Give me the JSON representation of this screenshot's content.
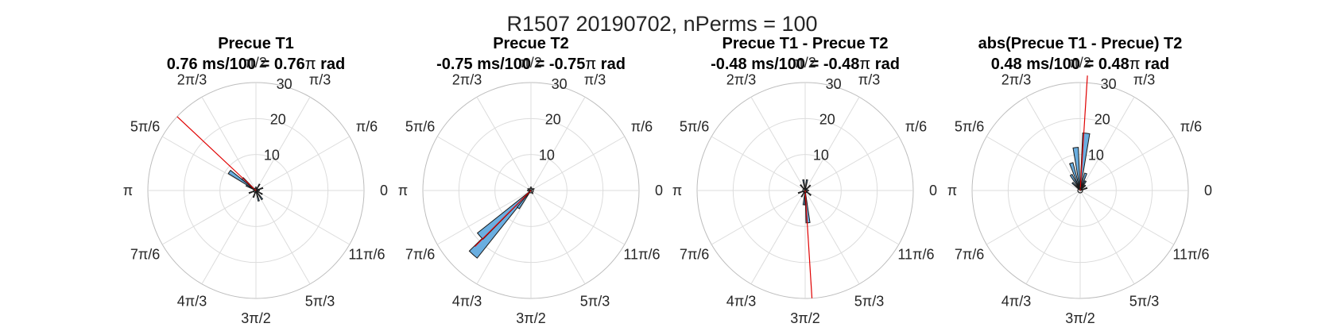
{
  "figure": {
    "suptitle": "R1507 20190702, nPerms = 100"
  },
  "chart_data": [
    {
      "type": "polar-histogram",
      "title_line1": "Precue T1",
      "title_prefix": "0.76 ms/100 = 0.76",
      "title_suffix": " rad",
      "rlim": [
        0,
        30
      ],
      "rticks": [
        "10",
        "20",
        "30"
      ],
      "theta_ticks": [
        "0",
        "π/6",
        "π/3",
        "π/2",
        "2π/3",
        "5π/6",
        "π",
        "7π/6",
        "4π/3",
        "3π/2",
        "5π/3",
        "11π/6"
      ],
      "mean_angle_pi": 0.76,
      "mean_length": 30,
      "bins": [
        {
          "angle_deg": 145,
          "count": 9
        },
        {
          "angle_deg": 138,
          "count": 5
        },
        {
          "angle_deg": 152,
          "count": 3
        },
        {
          "angle_deg": 20,
          "count": 2
        },
        {
          "angle_deg": 60,
          "count": 2
        },
        {
          "angle_deg": 200,
          "count": 2
        },
        {
          "angle_deg": 250,
          "count": 2
        },
        {
          "angle_deg": 285,
          "count": 3
        },
        {
          "angle_deg": 305,
          "count": 3
        },
        {
          "angle_deg": 330,
          "count": 2
        },
        {
          "angle_deg": 0,
          "count": 1
        },
        {
          "angle_deg": 90,
          "count": 1
        }
      ]
    },
    {
      "type": "polar-histogram",
      "title_line1": "Precue T2",
      "title_prefix": "-0.75 ms/100 = -0.75",
      "title_suffix": " rad",
      "rlim": [
        0,
        30
      ],
      "rticks": [
        "10",
        "20",
        "30"
      ],
      "theta_ticks": [
        "0",
        "π/6",
        "π/3",
        "π/2",
        "2π/3",
        "5π/6",
        "π",
        "7π/6",
        "4π/3",
        "3π/2",
        "5π/3",
        "11π/6"
      ],
      "mean_angle_pi": -0.75,
      "mean_length": 22,
      "bins": [
        {
          "angle_deg": 228,
          "count": 24
        },
        {
          "angle_deg": 222,
          "count": 19
        },
        {
          "angle_deg": 234,
          "count": 6
        },
        {
          "angle_deg": 30,
          "count": 1
        },
        {
          "angle_deg": 90,
          "count": 1
        },
        {
          "angle_deg": 150,
          "count": 1
        },
        {
          "angle_deg": 180,
          "count": 1
        },
        {
          "angle_deg": 300,
          "count": 1
        }
      ]
    },
    {
      "type": "polar-histogram",
      "title_line1": "Precue T1 - Precue T2",
      "title_prefix": "-0.48 ms/100 = -0.48",
      "title_suffix": " rad",
      "rlim": [
        0,
        30
      ],
      "rticks": [
        "10",
        "20",
        "30"
      ],
      "theta_ticks": [
        "0",
        "π/6",
        "π/3",
        "π/2",
        "2π/3",
        "5π/6",
        "π",
        "7π/6",
        "4π/3",
        "3π/2",
        "5π/3",
        "11π/6"
      ],
      "mean_angle_pi": -0.48,
      "mean_length": 30,
      "bins": [
        {
          "angle_deg": 275,
          "count": 9
        },
        {
          "angle_deg": 265,
          "count": 4
        },
        {
          "angle_deg": 100,
          "count": 3
        },
        {
          "angle_deg": 80,
          "count": 3
        },
        {
          "angle_deg": 45,
          "count": 2
        },
        {
          "angle_deg": 130,
          "count": 2
        },
        {
          "angle_deg": 200,
          "count": 2
        },
        {
          "angle_deg": 240,
          "count": 2
        },
        {
          "angle_deg": 320,
          "count": 2
        },
        {
          "angle_deg": 0,
          "count": 1
        }
      ]
    },
    {
      "type": "polar-histogram",
      "title_line1": "abs(Precue T1 - Precue) T2",
      "title_prefix": "0.48 ms/100 = 0.48",
      "title_suffix": " rad",
      "rlim": [
        0,
        30
      ],
      "rticks": [
        "10",
        "20",
        "30"
      ],
      "theta_ticks": [
        "0",
        "π/6",
        "π/3",
        "π/2",
        "2π/3",
        "5π/6",
        "π",
        "7π/6",
        "4π/3",
        "3π/2",
        "5π/3",
        "11π/6"
      ],
      "mean_angle_pi": 0.48,
      "mean_length": 32,
      "bins": [
        {
          "angle_deg": 84,
          "count": 16
        },
        {
          "angle_deg": 96,
          "count": 12
        },
        {
          "angle_deg": 108,
          "count": 8
        },
        {
          "angle_deg": 120,
          "count": 5
        },
        {
          "angle_deg": 135,
          "count": 3
        },
        {
          "angle_deg": 72,
          "count": 5
        },
        {
          "angle_deg": 60,
          "count": 3
        },
        {
          "angle_deg": 45,
          "count": 2
        },
        {
          "angle_deg": 20,
          "count": 2
        }
      ]
    }
  ]
}
